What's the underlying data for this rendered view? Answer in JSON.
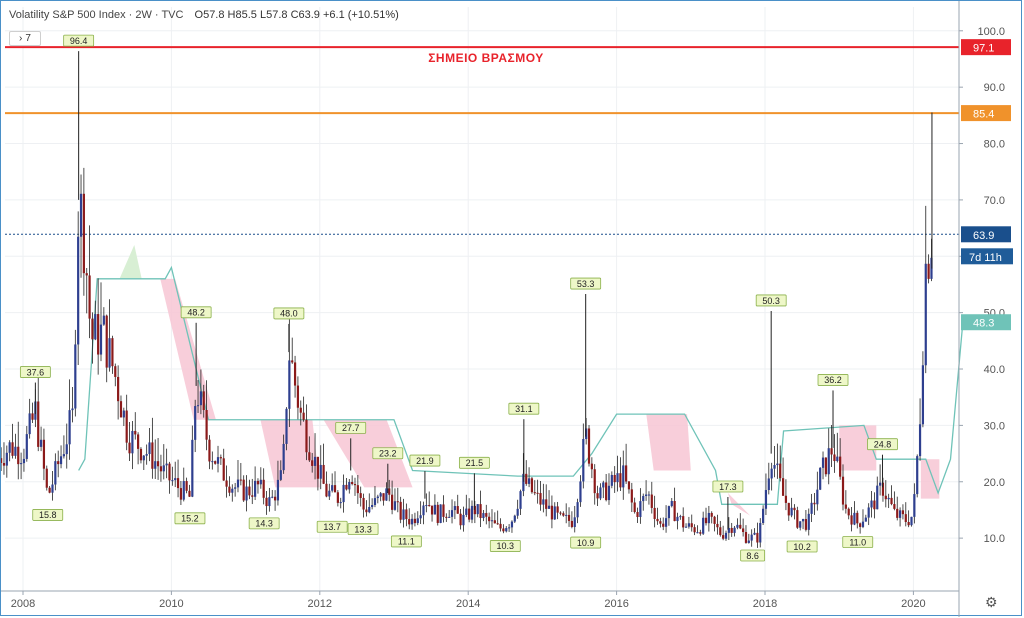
{
  "header": {
    "title": "Volatility S&P 500 Index · 2W · TVC",
    "open": "O57.8",
    "high": "H85.5",
    "low": "L57.8",
    "close": "C63.9",
    "change": "+6.1 (+10.51%)"
  },
  "indicator_toggle": {
    "label": "7"
  },
  "settings_icon": "gear-icon",
  "colors": {
    "candle_up": "#2e3f8f",
    "candle_down": "#8b1a1a",
    "boiling_line": "#e8232b",
    "resistance_line": "#f0922b",
    "last_price": "#1a4f8c",
    "countdown": "#1f5c99",
    "cloud_line": "#6fc3b8",
    "cloud_fill": "#f7c6d3",
    "cloud_fill_green": "#d8efd4",
    "marker_fill": "#eef7c8",
    "marker_stroke": "#8ab04a"
  },
  "chart_data": {
    "type": "candlestick",
    "title": "Volatility S&P 500 Index",
    "timeframe": "2W",
    "source": "TVC",
    "x_range": [
      "2007-09",
      "2020-09"
    ],
    "x_tick_labels": [
      "2008",
      "2010",
      "2012",
      "2014",
      "2016",
      "2018",
      "2020"
    ],
    "ylim": [
      0,
      105
    ],
    "y_tick_labels": [
      "10.0",
      "20.0",
      "30.0",
      "40.0",
      "50.0",
      "60.0",
      "70.0",
      "80.0",
      "90.0",
      "100.0"
    ],
    "grid": true,
    "horizontal_lines": [
      {
        "value": 97.1,
        "label": "97.1",
        "text": "ΣΗΜΕΙΟ ΒΡΑΣΜΟΥ",
        "color": "#e8232b"
      },
      {
        "value": 85.4,
        "label": "85.4",
        "color": "#f0922b"
      }
    ],
    "last_price": {
      "value": 63.9,
      "label": "63.9",
      "countdown": "7d 11h"
    },
    "cloud_current": {
      "value": 48.3,
      "label": "48.3"
    },
    "swing_labels": [
      {
        "date": "2008-03",
        "value": 37.6,
        "label": "37.6",
        "kind": "high"
      },
      {
        "date": "2008-05",
        "value": 15.8,
        "label": "15.8",
        "kind": "low"
      },
      {
        "date": "2008-10",
        "value": 96.4,
        "label": "96.4",
        "kind": "high"
      },
      {
        "date": "2010-04",
        "value": 15.2,
        "label": "15.2",
        "kind": "low"
      },
      {
        "date": "2010-05",
        "value": 48.2,
        "label": "48.2",
        "kind": "high"
      },
      {
        "date": "2011-04",
        "value": 14.3,
        "label": "14.3",
        "kind": "low"
      },
      {
        "date": "2011-08",
        "value": 48.0,
        "label": "48.0",
        "kind": "high"
      },
      {
        "date": "2012-03",
        "value": 13.7,
        "label": "13.7",
        "kind": "low"
      },
      {
        "date": "2012-06",
        "value": 27.7,
        "label": "27.7",
        "kind": "high"
      },
      {
        "date": "2012-08",
        "value": 13.3,
        "label": "13.3",
        "kind": "low"
      },
      {
        "date": "2012-12",
        "value": 23.2,
        "label": "23.2",
        "kind": "high"
      },
      {
        "date": "2013-03",
        "value": 11.1,
        "label": "11.1",
        "kind": "low"
      },
      {
        "date": "2013-06",
        "value": 21.9,
        "label": "21.9",
        "kind": "high"
      },
      {
        "date": "2014-02",
        "value": 21.5,
        "label": "21.5",
        "kind": "high"
      },
      {
        "date": "2014-07",
        "value": 10.3,
        "label": "10.3",
        "kind": "low"
      },
      {
        "date": "2014-10",
        "value": 31.1,
        "label": "31.1",
        "kind": "high"
      },
      {
        "date": "2015-08",
        "value": 10.9,
        "label": "10.9",
        "kind": "low"
      },
      {
        "date": "2015-08",
        "value": 53.3,
        "label": "53.3",
        "kind": "high"
      },
      {
        "date": "2017-07",
        "value": 17.3,
        "label": "17.3",
        "kind": "high"
      },
      {
        "date": "2017-11",
        "value": 8.6,
        "label": "8.6",
        "kind": "low"
      },
      {
        "date": "2018-02",
        "value": 50.3,
        "label": "50.3",
        "kind": "high"
      },
      {
        "date": "2018-07",
        "value": 10.2,
        "label": "10.2",
        "kind": "low"
      },
      {
        "date": "2018-12",
        "value": 36.2,
        "label": "36.2",
        "kind": "high"
      },
      {
        "date": "2019-04",
        "value": 11.0,
        "label": "11.0",
        "kind": "low"
      },
      {
        "date": "2019-08",
        "value": 24.8,
        "label": "24.8",
        "kind": "high"
      }
    ],
    "price_path": [
      [
        "2007-09",
        24
      ],
      [
        "2007-11",
        26
      ],
      [
        "2008-01",
        25
      ],
      [
        "2008-03",
        32
      ],
      [
        "2008-05",
        17
      ],
      [
        "2008-07",
        24
      ],
      [
        "2008-09",
        31
      ],
      [
        "2008-10",
        70
      ],
      [
        "2008-11",
        62
      ],
      [
        "2008-12",
        45
      ],
      [
        "2009-02",
        46
      ],
      [
        "2009-04",
        38
      ],
      [
        "2009-06",
        28
      ],
      [
        "2009-08",
        26
      ],
      [
        "2009-10",
        24
      ],
      [
        "2009-12",
        21
      ],
      [
        "2010-02",
        19
      ],
      [
        "2010-04",
        17
      ],
      [
        "2010-05",
        37
      ],
      [
        "2010-07",
        26
      ],
      [
        "2010-09",
        22
      ],
      [
        "2010-11",
        19
      ],
      [
        "2011-01",
        18
      ],
      [
        "2011-03",
        19
      ],
      [
        "2011-05",
        16
      ],
      [
        "2011-07",
        21
      ],
      [
        "2011-08",
        43
      ],
      [
        "2011-10",
        31
      ],
      [
        "2011-12",
        24
      ],
      [
        "2012-02",
        18
      ],
      [
        "2012-04",
        17
      ],
      [
        "2012-06",
        22
      ],
      [
        "2012-08",
        15
      ],
      [
        "2012-10",
        16
      ],
      [
        "2012-12",
        18
      ],
      [
        "2013-02",
        14
      ],
      [
        "2013-04",
        13
      ],
      [
        "2013-06",
        17
      ],
      [
        "2013-08",
        14
      ],
      [
        "2013-10",
        15
      ],
      [
        "2013-12",
        13
      ],
      [
        "2014-02",
        15
      ],
      [
        "2014-04",
        13
      ],
      [
        "2014-06",
        11.5
      ],
      [
        "2014-08",
        13
      ],
      [
        "2014-10",
        20
      ],
      [
        "2014-12",
        17
      ],
      [
        "2015-02",
        15
      ],
      [
        "2015-04",
        13
      ],
      [
        "2015-06",
        13
      ],
      [
        "2015-08",
        28
      ],
      [
        "2015-10",
        17
      ],
      [
        "2015-12",
        19
      ],
      [
        "2016-02",
        21
      ],
      [
        "2016-04",
        14
      ],
      [
        "2016-06",
        18
      ],
      [
        "2016-08",
        12
      ],
      [
        "2016-10",
        15
      ],
      [
        "2016-12",
        12
      ],
      [
        "2017-02",
        11.5
      ],
      [
        "2017-04",
        13
      ],
      [
        "2017-06",
        10.5
      ],
      [
        "2017-08",
        12.5
      ],
      [
        "2017-10",
        10
      ],
      [
        "2017-12",
        10
      ],
      [
        "2018-02",
        25
      ],
      [
        "2018-04",
        17
      ],
      [
        "2018-06",
        13
      ],
      [
        "2018-08",
        12.5
      ],
      [
        "2018-10",
        21
      ],
      [
        "2018-12",
        26
      ],
      [
        "2019-02",
        15
      ],
      [
        "2019-04",
        12.5
      ],
      [
        "2019-06",
        15
      ],
      [
        "2019-08",
        19
      ],
      [
        "2019-10",
        14
      ],
      [
        "2019-12",
        13
      ],
      [
        "2020-01",
        14
      ],
      [
        "2020-02",
        30
      ],
      [
        "2020-03",
        57.8
      ],
      [
        "2020-04",
        63.9
      ]
    ],
    "cloud_line": [
      [
        "2008-10",
        22
      ],
      [
        "2008-11",
        24
      ],
      [
        "2009-01",
        56
      ],
      [
        "2009-12",
        56
      ],
      [
        "2010-01",
        58
      ],
      [
        "2010-07",
        31
      ],
      [
        "2011-02",
        31
      ],
      [
        "2011-12",
        31
      ],
      [
        "2013-01",
        31
      ],
      [
        "2013-04",
        22
      ],
      [
        "2014-09",
        21
      ],
      [
        "2015-06",
        21
      ],
      [
        "2015-09",
        25
      ],
      [
        "2016-01",
        32
      ],
      [
        "2016-12",
        32
      ],
      [
        "2017-05",
        22
      ],
      [
        "2017-06",
        16
      ],
      [
        "2018-03",
        16
      ],
      [
        "2018-04",
        29
      ],
      [
        "2019-05",
        30
      ],
      [
        "2019-07",
        24
      ],
      [
        "2020-03",
        24
      ],
      [
        "2020-05",
        18
      ],
      [
        "2020-07",
        24
      ],
      [
        "2020-09",
        48.3
      ]
    ]
  }
}
